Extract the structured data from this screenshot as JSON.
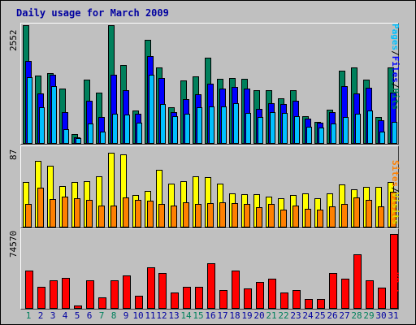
{
  "title": "Daily usage for March 2009",
  "colors": {
    "background": "#c0c0c0",
    "title": "#0000a0",
    "hits": "#00805c",
    "files": "#0000ff",
    "pages": "#00c0ff",
    "visits": "#ffff00",
    "sites": "#ff8000",
    "kbytes": "#ff0000",
    "weekday_label": "#0000a0",
    "weekend_label": "#00805c"
  },
  "panels": {
    "top": {
      "max_label": "2552",
      "legend": [
        "Pages",
        "Files",
        "Hits"
      ]
    },
    "middle": {
      "max_label": "87",
      "legend": [
        "Sites",
        "Visits"
      ]
    },
    "bottom": {
      "max_label": "74570",
      "legend": [
        "KBytes"
      ]
    }
  },
  "chart_data": {
    "type": "bar",
    "title": "Daily usage for March 2009",
    "categories": [
      "1",
      "2",
      "3",
      "4",
      "5",
      "6",
      "7",
      "8",
      "9",
      "10",
      "11",
      "12",
      "13",
      "14",
      "15",
      "16",
      "17",
      "18",
      "19",
      "20",
      "21",
      "22",
      "23",
      "24",
      "25",
      "26",
      "27",
      "28",
      "29",
      "30",
      "31"
    ],
    "weekend_days": [
      "1",
      "7",
      "8",
      "14",
      "15",
      "21",
      "22",
      "28",
      "29"
    ],
    "panels": [
      {
        "name": "top",
        "ymax": 2552,
        "series": [
          {
            "name": "Hits",
            "values": [
              2552,
              1460,
              1520,
              1180,
              210,
              1380,
              1100,
              2552,
              1690,
              710,
              2230,
              1640,
              780,
              1370,
              1450,
              1850,
              1400,
              1420,
              1390,
              1150,
              1150,
              980,
              1160,
              600,
              480,
              740,
              1580,
              1650,
              1380,
              580,
              1640
            ]
          },
          {
            "name": "Files",
            "values": [
              1780,
              1090,
              1480,
              680,
              140,
              920,
              570,
              1490,
              1160,
              650,
              1880,
              1420,
              680,
              970,
              1060,
              1290,
              1180,
              1220,
              1180,
              760,
              880,
              860,
              930,
              550,
              460,
              690,
              1240,
              1090,
              1210,
              500,
              1100
            ]
          },
          {
            "name": "Pages",
            "values": [
              1430,
              780,
              1240,
              320,
              120,
              430,
              270,
              640,
              630,
              460,
              1480,
              850,
              600,
              650,
              780,
              800,
              800,
              870,
              660,
              570,
              690,
              670,
              600,
              360,
              350,
              430,
              580,
              650,
              720,
              270,
              480
            ]
          }
        ]
      },
      {
        "name": "middle",
        "ymax": 87,
        "series": [
          {
            "name": "Visits",
            "values": [
              53,
              78,
              72,
              48,
              53,
              54,
              60,
              87,
              85,
              38,
              43,
              67,
              51,
              54,
              60,
              59,
              51,
              40,
              39,
              39,
              36,
              34,
              38,
              40,
              34,
              40,
              50,
              44,
              47,
              47,
              53
            ]
          },
          {
            "name": "Sites",
            "values": [
              27,
              46,
              33,
              36,
              34,
              32,
              26,
              26,
              35,
              32,
              31,
              27,
              26,
              29,
              27,
              28,
              29,
              28,
              27,
              24,
              27,
              21,
              26,
              22,
              21,
              25,
              27,
              35,
              32,
              25,
              42
            ]
          }
        ]
      },
      {
        "name": "bottom",
        "ymax": 74570,
        "series": [
          {
            "name": "KBytes",
            "values": [
              38000,
              22000,
              28000,
              31000,
              3000,
              28000,
              11000,
              28000,
              33000,
              13000,
              41000,
              36000,
              16000,
              22000,
              22000,
              45000,
              19000,
              38000,
              20000,
              27000,
              30000,
              16000,
              19000,
              10000,
              10000,
              36000,
              30000,
              54000,
              28000,
              21000,
              74570
            ]
          }
        ]
      }
    ]
  }
}
